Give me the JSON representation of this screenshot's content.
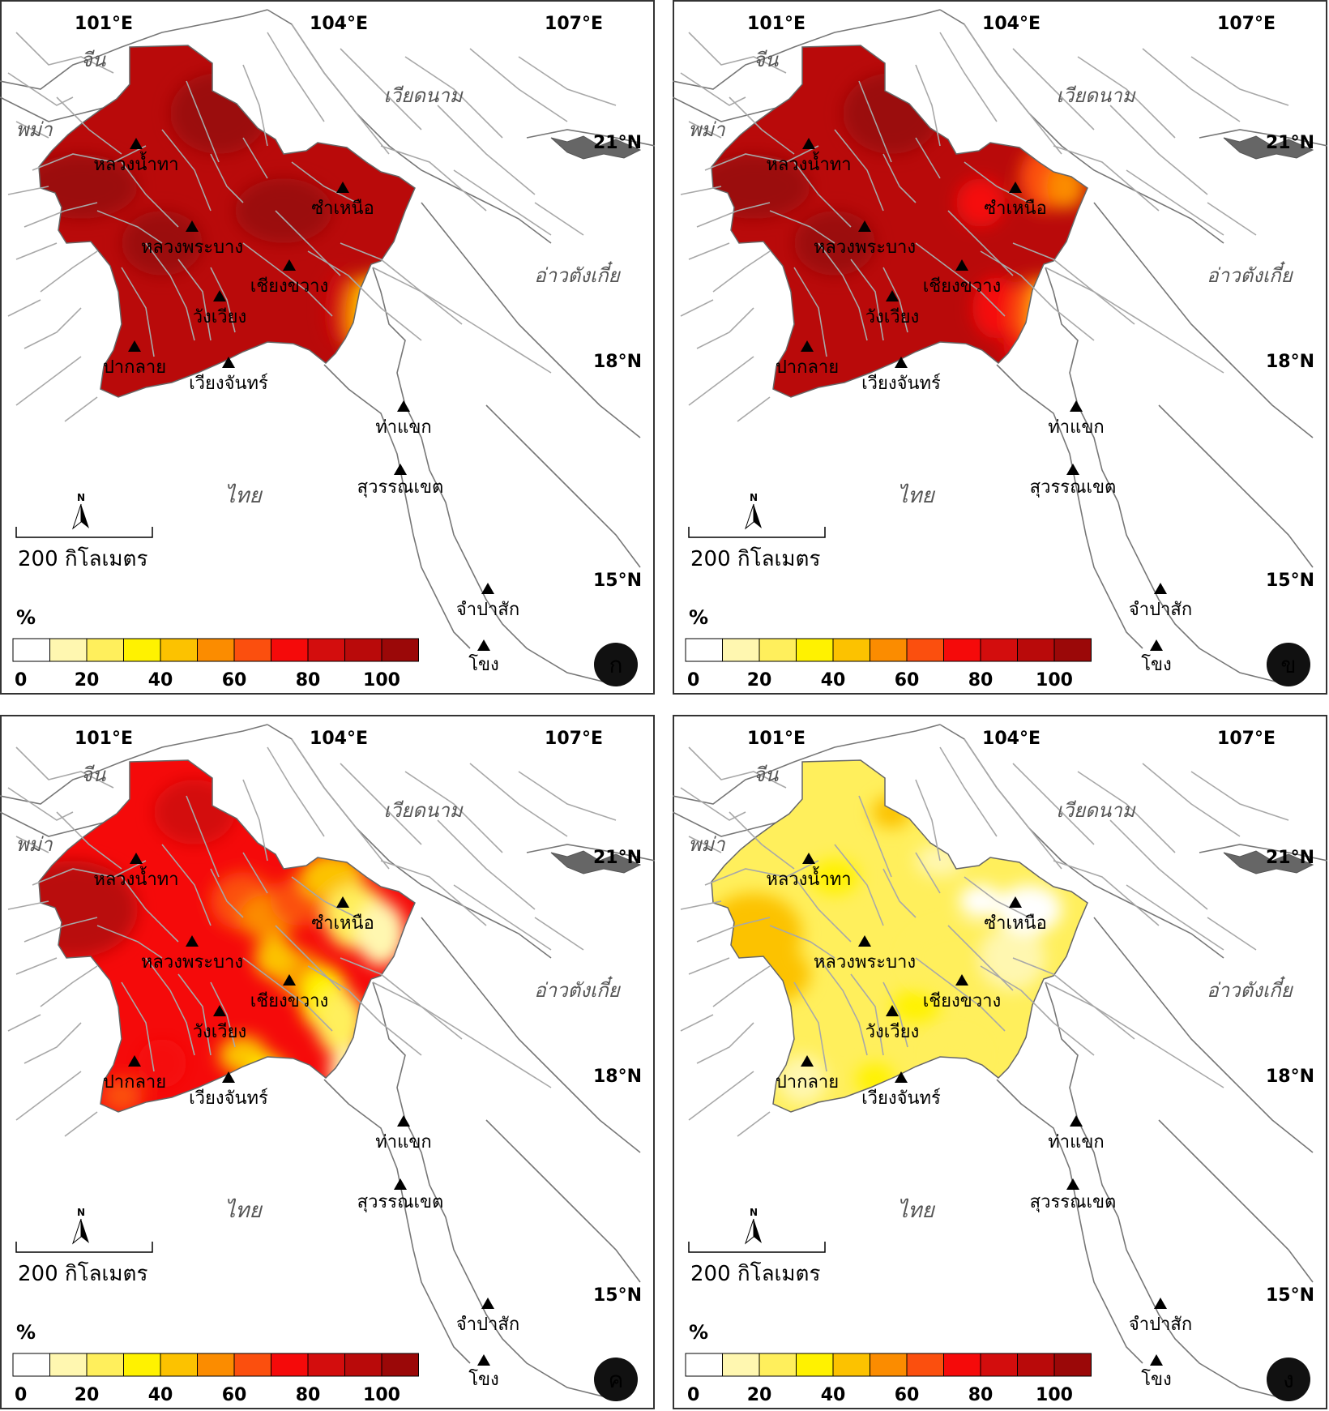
{
  "colors": {
    "scale": [
      "#ffffff",
      "#fff7b0",
      "#ffef5c",
      "#fff200",
      "#fcc200",
      "#fb8c00",
      "#fb4f0e",
      "#f50a0a",
      "#d30d0d",
      "#b90a0a",
      "#9b0808"
    ],
    "fault": "#a8a8a8",
    "border": "#777777"
  },
  "coords": {
    "lon": [
      "101°E",
      "104°E",
      "107°E"
    ],
    "lat": [
      "21°N",
      "18°N",
      "15°N"
    ]
  },
  "countries": [
    "จีน",
    "พม่า",
    "เวียดนาม",
    "อ่าวตังเกี๋ย",
    "ไทย"
  ],
  "cities": [
    "หลวงน้ำทา",
    "ซำเหนือ",
    "หลวงพระบาง",
    "เชียงขวาง",
    "วังเวียง",
    "ปากลาย",
    "เวียงจันทร์",
    "ท่าแขก",
    "สุวรรณเขต",
    "จำปาสัก",
    "โขง"
  ],
  "scalebar": {
    "label": "200 กิโลเมตร",
    "north": "N"
  },
  "legend": {
    "unit": "%",
    "ticks": [
      "0",
      "20",
      "40",
      "60",
      "80",
      "100"
    ]
  },
  "panels": [
    {
      "id": "ก",
      "level": "very-high"
    },
    {
      "id": "ข",
      "level": "high"
    },
    {
      "id": "ค",
      "level": "medium"
    },
    {
      "id": "ง",
      "level": "low"
    }
  ]
}
